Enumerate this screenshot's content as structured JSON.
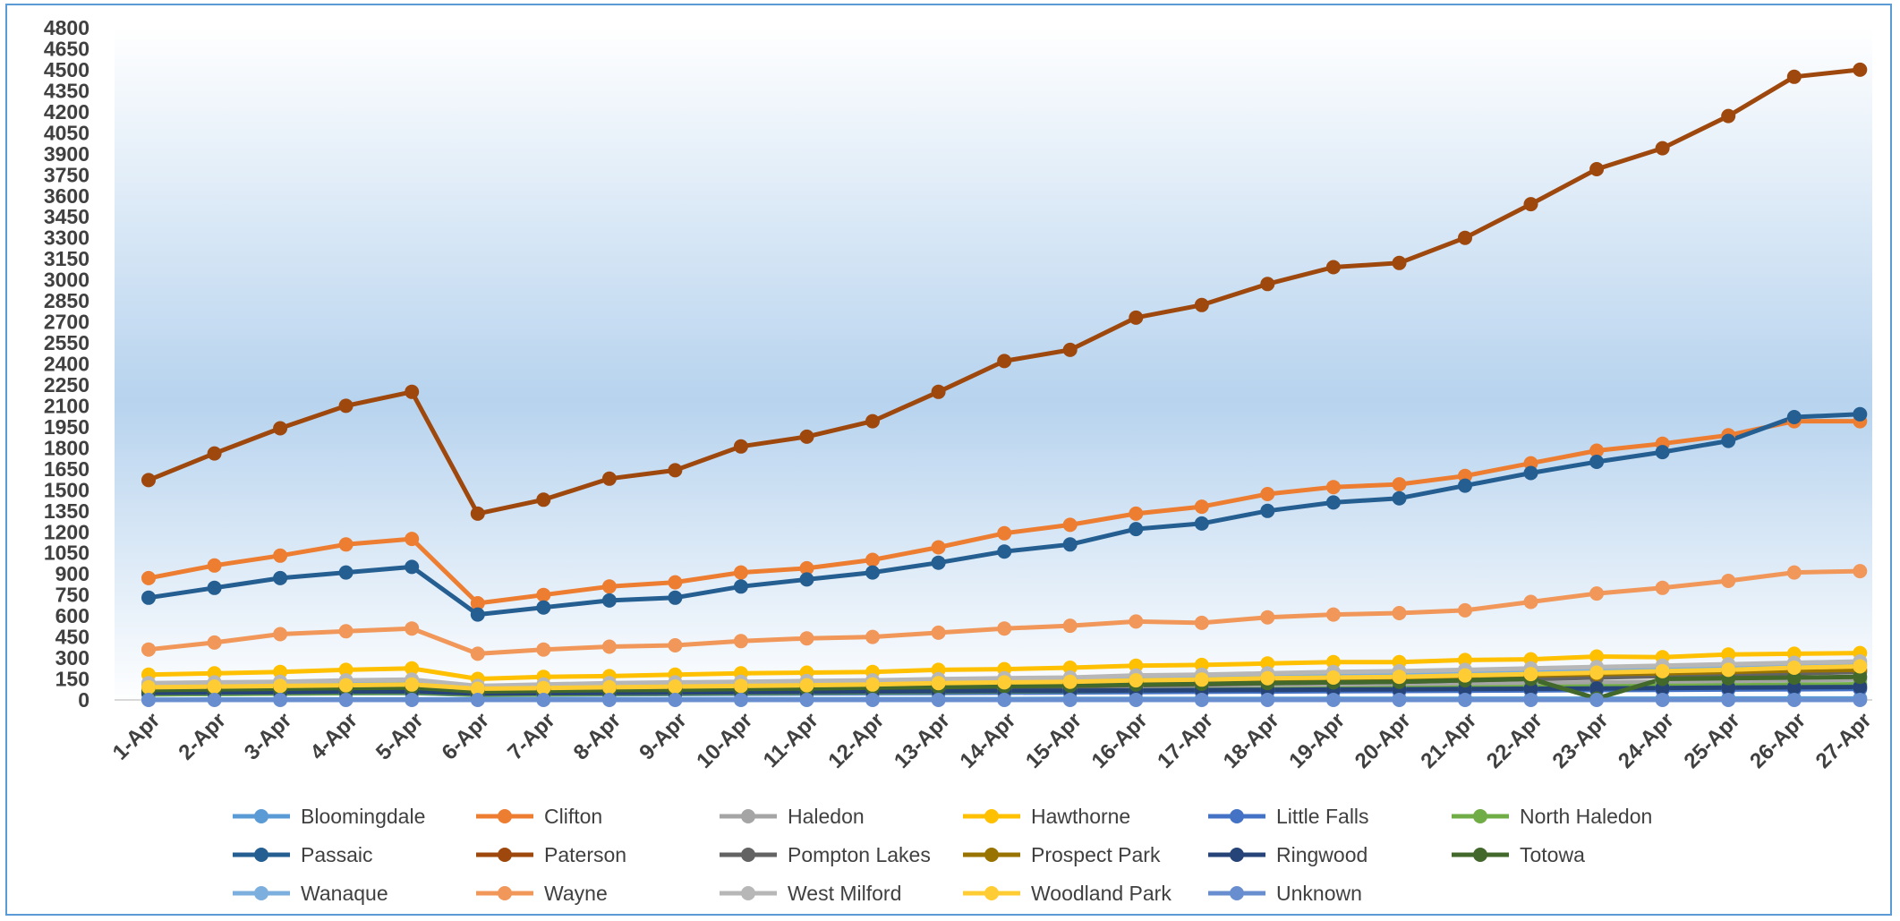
{
  "chart_data": {
    "type": "line",
    "title": "",
    "xlabel": "",
    "ylabel": "",
    "ylim": [
      0,
      4800
    ],
    "y_ticks": [
      "0",
      "150",
      "300",
      "450",
      "600",
      "750",
      "900",
      "1050",
      "1200",
      "1350",
      "1500",
      "1650",
      "1800",
      "1950",
      "2100",
      "2250",
      "2400",
      "2550",
      "2700",
      "2850",
      "3000",
      "3150",
      "3300",
      "3450",
      "3600",
      "3750",
      "3900",
      "4050",
      "4200",
      "4350",
      "4500",
      "4650",
      "4800"
    ],
    "categories": [
      "1-Apr",
      "2-Apr",
      "3-Apr",
      "4-Apr",
      "5-Apr",
      "6-Apr",
      "7-Apr",
      "8-Apr",
      "9-Apr",
      "10-Apr",
      "11-Apr",
      "12-Apr",
      "13-Apr",
      "14-Apr",
      "15-Apr",
      "16-Apr",
      "17-Apr",
      "18-Apr",
      "19-Apr",
      "20-Apr",
      "21-Apr",
      "22-Apr",
      "23-Apr",
      "24-Apr",
      "25-Apr",
      "26-Apr",
      "27-Apr"
    ],
    "grid": false,
    "legend": "bottom",
    "series": [
      {
        "name": "Bloomingdale",
        "color": "#5b9bd5",
        "values": [
          2,
          3,
          3,
          4,
          4,
          3,
          4,
          4,
          5,
          5,
          5,
          6,
          6,
          6,
          7,
          7,
          7,
          7,
          8,
          8,
          8,
          9,
          9,
          9,
          10,
          10,
          10
        ]
      },
      {
        "name": "Clifton",
        "color": "#ed7d31",
        "values": [
          870,
          960,
          1030,
          1110,
          1150,
          690,
          750,
          810,
          840,
          910,
          940,
          1000,
          1090,
          1190,
          1250,
          1330,
          1380,
          1470,
          1520,
          1540,
          1600,
          1690,
          1780,
          1830,
          1890,
          1990,
          1990
        ]
      },
      {
        "name": "Haledon",
        "color": "#a5a5a5",
        "values": [
          50,
          55,
          60,
          65,
          70,
          45,
          50,
          55,
          58,
          62,
          66,
          70,
          74,
          78,
          82,
          90,
          95,
          100,
          105,
          110,
          115,
          120,
          125,
          130,
          135,
          140,
          145
        ]
      },
      {
        "name": "Hawthorne",
        "color": "#ffc000",
        "values": [
          180,
          190,
          200,
          215,
          225,
          150,
          165,
          170,
          180,
          190,
          195,
          200,
          215,
          220,
          230,
          245,
          250,
          260,
          270,
          270,
          285,
          290,
          310,
          305,
          325,
          330,
          335
        ]
      },
      {
        "name": "Little Falls",
        "color": "#4472c4",
        "values": [
          40,
          42,
          45,
          48,
          50,
          35,
          38,
          40,
          42,
          44,
          46,
          48,
          50,
          52,
          54,
          56,
          58,
          60,
          62,
          64,
          66,
          68,
          70,
          72,
          74,
          76,
          78
        ]
      },
      {
        "name": "North Haledon",
        "color": "#70ad47",
        "values": [
          40,
          43,
          46,
          49,
          52,
          38,
          40,
          43,
          46,
          49,
          52,
          55,
          58,
          61,
          64,
          68,
          72,
          76,
          80,
          84,
          88,
          92,
          96,
          100,
          104,
          108,
          112
        ]
      },
      {
        "name": "Passaic",
        "color": "#255e91",
        "values": [
          730,
          800,
          870,
          910,
          950,
          610,
          660,
          710,
          730,
          810,
          860,
          910,
          980,
          1060,
          1110,
          1220,
          1260,
          1350,
          1410,
          1440,
          1530,
          1620,
          1700,
          1770,
          1850,
          2020,
          2040
        ]
      },
      {
        "name": "Paterson",
        "color": "#9e480e",
        "values": [
          1570,
          1760,
          1940,
          2100,
          2200,
          1330,
          1430,
          1580,
          1640,
          1810,
          1880,
          1990,
          2200,
          2420,
          2500,
          2730,
          2820,
          2970,
          3090,
          3120,
          3300,
          3540,
          3790,
          3940,
          4170,
          4450,
          4500
        ]
      },
      {
        "name": "Pompton Lakes",
        "color": "#636363",
        "values": [
          60,
          65,
          70,
          75,
          80,
          55,
          60,
          65,
          68,
          72,
          76,
          80,
          85,
          90,
          95,
          105,
          110,
          120,
          125,
          130,
          140,
          150,
          160,
          170,
          180,
          190,
          200
        ]
      },
      {
        "name": "Prospect Park",
        "color": "#997300",
        "values": [
          80,
          85,
          90,
          95,
          100,
          65,
          75,
          80,
          85,
          90,
          95,
          100,
          105,
          110,
          115,
          130,
          135,
          145,
          150,
          155,
          165,
          175,
          185,
          190,
          200,
          210,
          215
        ]
      },
      {
        "name": "Ringwood",
        "color": "#264478",
        "values": [
          50,
          52,
          55,
          58,
          60,
          45,
          48,
          50,
          52,
          55,
          57,
          60,
          62,
          64,
          66,
          68,
          70,
          72,
          74,
          76,
          78,
          80,
          82,
          85,
          88,
          90,
          92
        ]
      },
      {
        "name": "Totowa",
        "color": "#43682b",
        "values": [
          70,
          75,
          80,
          85,
          88,
          60,
          65,
          70,
          72,
          78,
          82,
          88,
          92,
          98,
          102,
          110,
          115,
          120,
          125,
          130,
          140,
          150,
          10,
          150,
          155,
          160,
          165
        ]
      },
      {
        "name": "Wanaque",
        "color": "#7cafdd",
        "values": [
          110,
          120,
          125,
          130,
          135,
          95,
          105,
          110,
          115,
          120,
          125,
          130,
          138,
          145,
          150,
          160,
          165,
          175,
          180,
          185,
          195,
          205,
          215,
          220,
          230,
          240,
          250
        ]
      },
      {
        "name": "Wayne",
        "color": "#f1975a",
        "values": [
          360,
          410,
          470,
          490,
          510,
          330,
          360,
          380,
          390,
          420,
          440,
          450,
          480,
          510,
          530,
          560,
          550,
          590,
          610,
          620,
          640,
          700,
          760,
          800,
          850,
          910,
          920
        ]
      },
      {
        "name": "West Milford",
        "color": "#b7b7b7",
        "values": [
          120,
          125,
          130,
          140,
          145,
          100,
          110,
          120,
          125,
          130,
          135,
          140,
          148,
          155,
          160,
          175,
          180,
          190,
          200,
          205,
          215,
          225,
          235,
          245,
          255,
          265,
          275
        ]
      },
      {
        "name": "Woodland Park",
        "color": "#ffcd33",
        "values": [
          90,
          95,
          100,
          105,
          110,
          80,
          85,
          90,
          95,
          100,
          105,
          110,
          120,
          125,
          130,
          140,
          145,
          155,
          160,
          165,
          175,
          185,
          195,
          205,
          215,
          230,
          240
        ]
      },
      {
        "name": "Unknown",
        "color": "#698ed0",
        "values": [
          0,
          0,
          0,
          0,
          0,
          0,
          0,
          0,
          0,
          0,
          0,
          0,
          0,
          0,
          0,
          0,
          0,
          0,
          0,
          0,
          0,
          0,
          0,
          0,
          0,
          0,
          0
        ]
      }
    ]
  }
}
